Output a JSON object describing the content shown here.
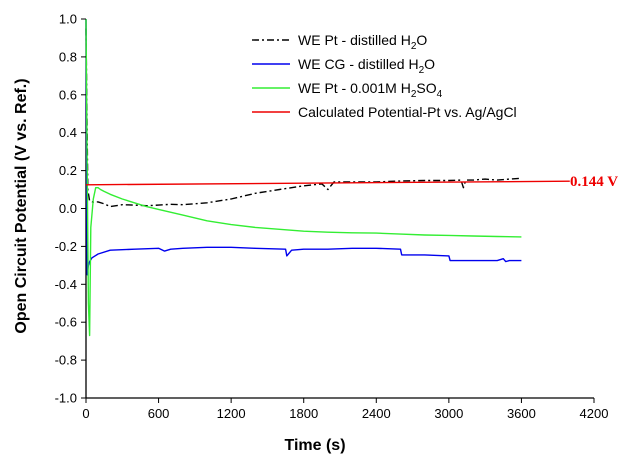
{
  "chart_data": {
    "type": "line",
    "xlabel": "Time (s)",
    "ylabel": "Open Circuit Potential (V vs. Ref.)",
    "xlim": [
      0,
      4200
    ],
    "ylim": [
      -1.0,
      1.0
    ],
    "xticks": [
      0,
      600,
      1200,
      1800,
      2400,
      3000,
      3600,
      4200
    ],
    "yticks": [
      -1.0,
      -0.8,
      -0.6,
      -0.4,
      -0.2,
      0.0,
      0.2,
      0.4,
      0.6,
      0.8,
      1.0
    ],
    "xtick_labels": [
      "0",
      "600",
      "1200",
      "1800",
      "2400",
      "3000",
      "3600",
      "4200"
    ],
    "ytick_labels": [
      "-1.0",
      "-0.8",
      "-0.6",
      "-0.4",
      "-0.2",
      "0.0",
      "0.2",
      "0.4",
      "0.6",
      "0.8",
      "1.0"
    ],
    "grid": false,
    "legend_position": "top-right",
    "series": [
      {
        "name_main": "WE Pt   - distilled H",
        "name_sub": "2",
        "name_tail": "O",
        "color": "#000000",
        "dash": "dashdot",
        "x": [
          0,
          15,
          30,
          60,
          100,
          150,
          200,
          250,
          300,
          400,
          500,
          600,
          700,
          800,
          900,
          1000,
          1200,
          1400,
          1600,
          1800,
          1950,
          2000,
          2050,
          2200,
          2400,
          2600,
          2800,
          3000,
          3100,
          3120,
          3140,
          3200,
          3300,
          3400,
          3500,
          3600
        ],
        "y": [
          0.95,
          0.1,
          0.04,
          0.033,
          0.035,
          0.025,
          0.01,
          0.015,
          0.02,
          0.018,
          0.015,
          0.018,
          0.022,
          0.02,
          0.025,
          0.03,
          0.05,
          0.08,
          0.1,
          0.12,
          0.13,
          0.1,
          0.14,
          0.14,
          0.14,
          0.145,
          0.148,
          0.148,
          0.15,
          0.11,
          0.15,
          0.15,
          0.155,
          0.15,
          0.155,
          0.16
        ]
      },
      {
        "name_main": "WE CG - distilled H",
        "name_sub": "2",
        "name_tail": "O",
        "color": "#0000ee",
        "dash": "solid",
        "x": [
          0,
          10,
          20,
          30,
          50,
          100,
          200,
          400,
          600,
          650,
          700,
          800,
          1000,
          1200,
          1400,
          1650,
          1660,
          1700,
          1800,
          2000,
          2200,
          2400,
          2600,
          2610,
          2800,
          3000,
          3010,
          3200,
          3400,
          3450,
          3470,
          3500,
          3600
        ],
        "y": [
          1.0,
          -0.35,
          -0.3,
          -0.28,
          -0.26,
          -0.24,
          -0.22,
          -0.215,
          -0.21,
          -0.225,
          -0.215,
          -0.21,
          -0.205,
          -0.205,
          -0.21,
          -0.215,
          -0.25,
          -0.22,
          -0.215,
          -0.215,
          -0.21,
          -0.21,
          -0.215,
          -0.245,
          -0.245,
          -0.25,
          -0.275,
          -0.275,
          -0.275,
          -0.265,
          -0.28,
          -0.275,
          -0.275
        ]
      },
      {
        "name_main": "WE Pt   - 0.001M H",
        "name_sub": "2",
        "name_tail": "SO",
        "name_sub2": "4",
        "color": "#33ee33",
        "dash": "solid",
        "x": [
          0,
          10,
          20,
          30,
          40,
          60,
          80,
          100,
          120,
          150,
          200,
          300,
          400,
          500,
          600,
          800,
          1000,
          1200,
          1400,
          1600,
          1800,
          2000,
          2200,
          2400,
          2600,
          2800,
          3000,
          3200,
          3400,
          3600
        ],
        "y": [
          1.0,
          0.2,
          -0.5,
          -0.67,
          -0.1,
          0.05,
          0.11,
          0.11,
          0.1,
          0.09,
          0.075,
          0.05,
          0.03,
          0.01,
          -0.005,
          -0.035,
          -0.065,
          -0.085,
          -0.1,
          -0.11,
          -0.12,
          -0.125,
          -0.128,
          -0.13,
          -0.135,
          -0.14,
          -0.142,
          -0.145,
          -0.148,
          -0.15
        ]
      },
      {
        "name_main": "Calculated Potential-Pt vs. Ag/AgCl",
        "color": "#ee0000",
        "dash": "solid",
        "x": [
          0,
          4000
        ],
        "y": [
          0.125,
          0.144
        ]
      }
    ],
    "annotation": {
      "text": "0.144 V",
      "color": "#ee0000"
    }
  }
}
